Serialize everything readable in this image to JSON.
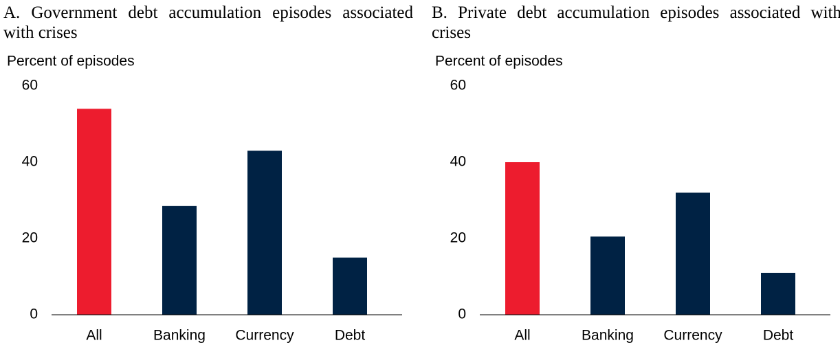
{
  "chart_data": [
    {
      "type": "bar",
      "title": "A. Government debt accumulation episodes associated with crises",
      "y_label": "Percent of episodes",
      "categories": [
        "All",
        "Banking",
        "Currency",
        "Debt"
      ],
      "values": [
        54,
        28.5,
        43,
        15
      ],
      "colors": [
        "#ed1c2e",
        "#002244",
        "#002244",
        "#002244"
      ],
      "ylim": [
        0,
        60
      ],
      "yticks": [
        0,
        20,
        40,
        60
      ]
    },
    {
      "type": "bar",
      "title": "B. Private debt accumulation episodes associated with crises",
      "y_label": "Percent of episodes",
      "categories": [
        "All",
        "Banking",
        "Currency",
        "Debt"
      ],
      "values": [
        40,
        20.5,
        32,
        11
      ],
      "colors": [
        "#ed1c2e",
        "#002244",
        "#002244",
        "#002244"
      ],
      "ylim": [
        0,
        60
      ],
      "yticks": [
        0,
        20,
        40,
        60
      ]
    }
  ]
}
